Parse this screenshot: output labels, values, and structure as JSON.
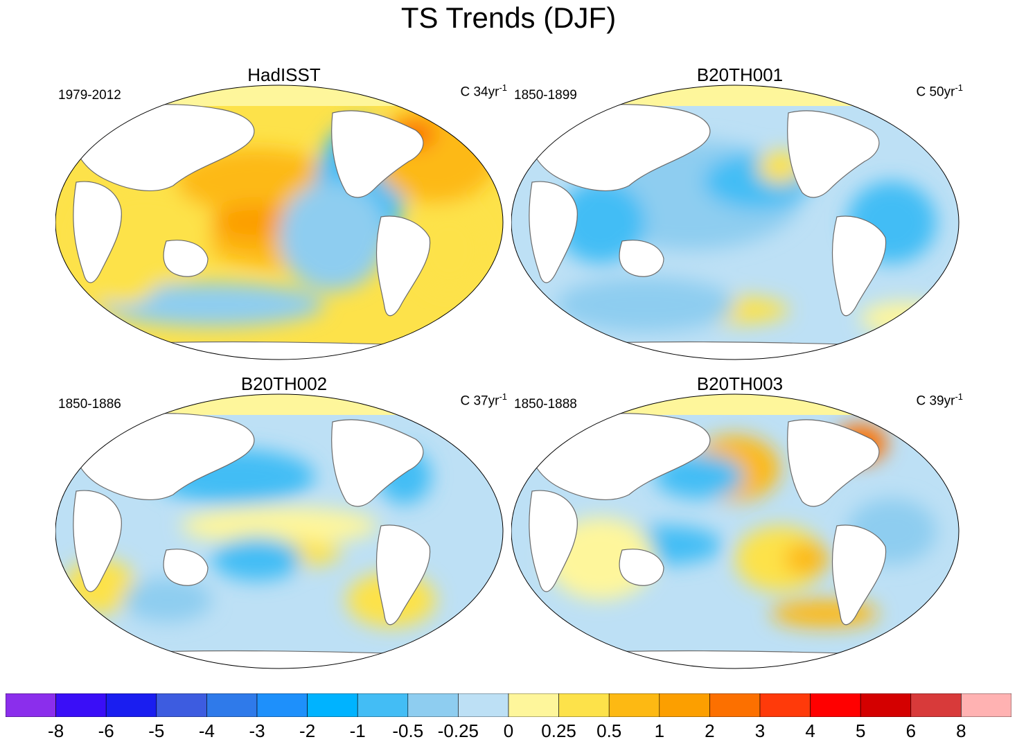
{
  "title": "TS Trends (DJF)",
  "panels": [
    {
      "title": "HadISST",
      "period": "1979-2012",
      "units_prefix": "C 34yr",
      "units_exp": "-1",
      "blobs": [
        [
          0.45,
          0.35,
          0.18,
          0.12,
          "#fdb913"
        ],
        [
          0.52,
          0.55,
          0.2,
          0.12,
          "#fdb913"
        ],
        [
          0.45,
          0.5,
          0.1,
          0.07,
          "#fc9f00"
        ],
        [
          0.68,
          0.38,
          0.1,
          0.25,
          "#43bdf5"
        ],
        [
          0.62,
          0.55,
          0.12,
          0.2,
          "#8ecdf0"
        ],
        [
          0.85,
          0.25,
          0.14,
          0.18,
          "#fdb913"
        ],
        [
          0.8,
          0.18,
          0.05,
          0.05,
          "#fc7000"
        ],
        [
          0.2,
          0.55,
          0.15,
          0.18,
          "#fde24a"
        ],
        [
          0.35,
          0.8,
          0.25,
          0.08,
          "#8ecdf0"
        ],
        [
          0.15,
          0.7,
          0.08,
          0.1,
          "#fde24a"
        ],
        [
          0.88,
          0.6,
          0.08,
          0.15,
          "#fde24a"
        ]
      ]
    },
    {
      "title": "B20TH001",
      "period": "1850-1899",
      "units_prefix": "C 50yr",
      "units_exp": "-1",
      "blobs": [
        [
          0.4,
          0.4,
          0.25,
          0.2,
          "#8ecdf0"
        ],
        [
          0.55,
          0.35,
          0.12,
          0.1,
          "#43bdf5"
        ],
        [
          0.6,
          0.3,
          0.05,
          0.06,
          "#fde24a"
        ],
        [
          0.85,
          0.5,
          0.1,
          0.15,
          "#43bdf5"
        ],
        [
          0.5,
          0.82,
          0.12,
          0.05,
          "#fde24a"
        ],
        [
          0.88,
          0.85,
          0.1,
          0.06,
          "#fef69b"
        ],
        [
          0.2,
          0.5,
          0.1,
          0.15,
          "#43bdf5"
        ],
        [
          0.3,
          0.8,
          0.2,
          0.1,
          "#8ecdf0"
        ]
      ]
    },
    {
      "title": "B20TH002",
      "period": "1850-1886",
      "units_prefix": "C 37yr",
      "units_exp": "-1",
      "blobs": [
        [
          0.4,
          0.3,
          0.18,
          0.1,
          "#43bdf5"
        ],
        [
          0.5,
          0.48,
          0.22,
          0.07,
          "#fef69b"
        ],
        [
          0.52,
          0.58,
          0.12,
          0.05,
          "#fde24a"
        ],
        [
          0.45,
          0.6,
          0.1,
          0.08,
          "#43bdf5"
        ],
        [
          0.78,
          0.3,
          0.06,
          0.1,
          "#43bdf5"
        ],
        [
          0.75,
          0.75,
          0.1,
          0.1,
          "#fde24a"
        ],
        [
          0.1,
          0.7,
          0.08,
          0.1,
          "#fde24a"
        ],
        [
          0.25,
          0.75,
          0.1,
          0.08,
          "#8ecdf0"
        ]
      ]
    },
    {
      "title": "B20TH003",
      "period": "1850-1888",
      "units_prefix": "C 39yr",
      "units_exp": "-1",
      "blobs": [
        [
          0.5,
          0.27,
          0.1,
          0.12,
          "#fdb913"
        ],
        [
          0.42,
          0.3,
          0.1,
          0.08,
          "#43bdf5"
        ],
        [
          0.6,
          0.6,
          0.1,
          0.12,
          "#fde24a"
        ],
        [
          0.66,
          0.6,
          0.05,
          0.06,
          "#fdb913"
        ],
        [
          0.78,
          0.18,
          0.06,
          0.07,
          "#fc7000"
        ],
        [
          0.35,
          0.55,
          0.12,
          0.07,
          "#43bdf5"
        ],
        [
          0.7,
          0.8,
          0.12,
          0.05,
          "#fdb913"
        ],
        [
          0.2,
          0.6,
          0.12,
          0.15,
          "#fef69b"
        ],
        [
          0.85,
          0.5,
          0.1,
          0.12,
          "#8ecdf0"
        ]
      ]
    }
  ],
  "colorbar": {
    "colors": [
      "#8b2eec",
      "#3a0ef7",
      "#1a1ef0",
      "#3d5ce0",
      "#2f7aea",
      "#1e90fb",
      "#00b3ff",
      "#43bdf5",
      "#8ecdf0",
      "#bde0f5",
      "#fef69b",
      "#fde24a",
      "#fdb913",
      "#fc9f00",
      "#fc7000",
      "#ff3a0a",
      "#ff0000",
      "#d40000",
      "#d83a3a",
      "#ffb2b2"
    ],
    "labels": [
      "-8",
      "-6",
      "-5",
      "-4",
      "-3",
      "-2",
      "-1",
      "-0.5",
      "-0.25",
      "0",
      "0.25",
      "0.5",
      "1",
      "2",
      "3",
      "4",
      "5",
      "6",
      "8"
    ]
  }
}
